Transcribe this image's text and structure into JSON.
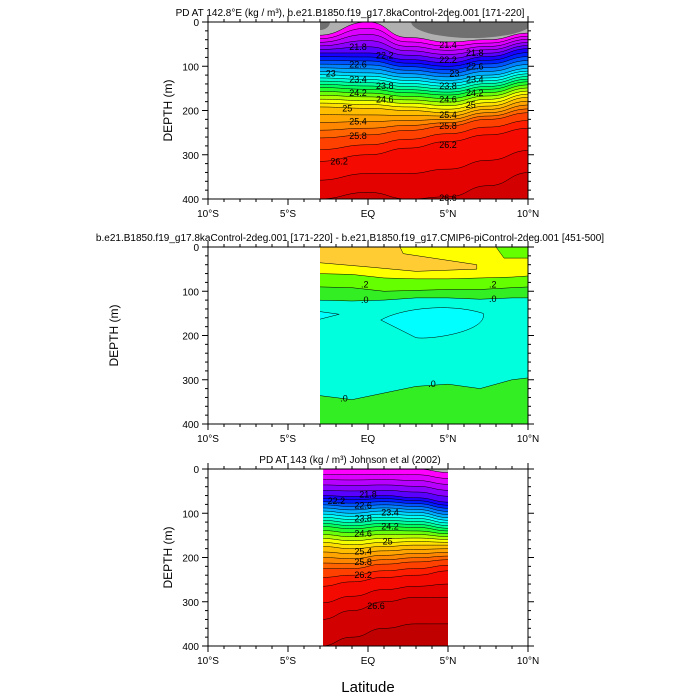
{
  "chart_data": [
    {
      "type": "contour",
      "title": "PD AT 142.8°E (kg / m³), b.e21.B1850.f19_g17.8kaControl-2deg.001 [171-220]",
      "ylabel": "DEPTH (m)",
      "xlim": [
        -10,
        10
      ],
      "ylim": [
        400,
        0
      ],
      "xticks": [
        "10°S",
        "5°S",
        "EQ",
        "5°N",
        "10°N"
      ],
      "yticks": [
        "0",
        "100",
        "200",
        "300",
        "400"
      ],
      "data_lat_range": [
        -3,
        10
      ],
      "level_step": 0.2,
      "lats": [
        -3,
        0,
        2.5,
        5,
        7.5,
        10
      ],
      "top_gray_level": 21.0,
      "anchors": [
        {
          "level": 21.0,
          "depth": [
            30,
            0,
            35,
            45,
            40,
            25
          ]
        },
        {
          "level": 22.0,
          "depth": [
            70,
            70,
            85,
            92,
            78,
            60
          ]
        },
        {
          "level": 23.0,
          "depth": [
            112,
            115,
            125,
            132,
            120,
            105
          ]
        },
        {
          "level": 24.0,
          "depth": [
            148,
            152,
            160,
            165,
            152,
            135
          ]
        },
        {
          "level": 25.0,
          "depth": [
            192,
            195,
            200,
            205,
            190,
            170
          ]
        },
        {
          "level": 25.8,
          "depth": [
            262,
            255,
            245,
            235,
            220,
            205
          ]
        },
        {
          "level": 26.2,
          "depth": [
            315,
            300,
            285,
            270,
            255,
            240
          ]
        },
        {
          "level": 26.6,
          "depth": [
            400,
            385,
            400,
            395,
            370,
            340
          ]
        }
      ],
      "contour_labels": [
        {
          "text": "21.8",
          "lat": -2.3,
          "depth": 56
        },
        {
          "text": "22.2",
          "lat": -2.3,
          "depth": 76
        },
        {
          "text": "22.6",
          "lat": -2.3,
          "depth": 96
        },
        {
          "text": "23",
          "lat": -1.3,
          "depth": 116
        },
        {
          "text": "23.4",
          "lat": -2.3,
          "depth": 130
        },
        {
          "text": "23.8",
          "lat": -2.3,
          "depth": 145
        },
        {
          "text": "24.2",
          "lat": -2.3,
          "depth": 160
        },
        {
          "text": "24.6",
          "lat": -2.3,
          "depth": 175
        },
        {
          "text": "25",
          "lat": -1.3,
          "depth": 196
        },
        {
          "text": "25.4",
          "lat": -2.3,
          "depth": 225
        },
        {
          "text": "25.8",
          "lat": -2.3,
          "depth": 258
        },
        {
          "text": "26.2",
          "lat": -1.8,
          "depth": 315
        },
        {
          "text": "21.4",
          "lat": 5,
          "depth": 52
        },
        {
          "text": "21.8",
          "lat": 5,
          "depth": 70
        },
        {
          "text": "22.2",
          "lat": 5,
          "depth": 86
        },
        {
          "text": "22.6",
          "lat": 5,
          "depth": 101
        },
        {
          "text": "23",
          "lat": 5.4,
          "depth": 116
        },
        {
          "text": "23.4",
          "lat": 5,
          "depth": 130
        },
        {
          "text": "23.8",
          "lat": 5,
          "depth": 145
        },
        {
          "text": "24.2",
          "lat": 5,
          "depth": 160
        },
        {
          "text": "24.6",
          "lat": 5,
          "depth": 175
        },
        {
          "text": "25",
          "lat": 5.4,
          "depth": 188
        },
        {
          "text": "25.4",
          "lat": 5,
          "depth": 210
        },
        {
          "text": "25.8",
          "lat": 5,
          "depth": 235
        },
        {
          "text": "26.2",
          "lat": 5,
          "depth": 278
        },
        {
          "text": "26.6",
          "lat": 5,
          "depth": 398
        }
      ]
    },
    {
      "type": "contour",
      "title": "b.e21.B1850.f19_g17.8kaControl-2deg.001 [171-220] - b.e21.B1850.f19_g17.CMIP6-piControl-2deg.001 [451-500]",
      "ylabel": "DEPTH (m)",
      "xlim": [
        -10,
        10
      ],
      "ylim": [
        400,
        0
      ],
      "xticks": [
        "10°S",
        "5°S",
        "EQ",
        "5°N",
        "10°N"
      ],
      "yticks": [
        "0",
        "100",
        "200",
        "300",
        "400"
      ],
      "data_lat_range": [
        -3,
        10
      ],
      "contour_labels": [
        {
          "text": ".2",
          "lat": -0.2,
          "depth": 85
        },
        {
          "text": ".2",
          "lat": 7.8,
          "depth": 85
        },
        {
          "text": ".0",
          "lat": -0.2,
          "depth": 120
        },
        {
          "text": ".0",
          "lat": 7.8,
          "depth": 118
        },
        {
          "text": ".0",
          "lat": 4,
          "depth": 310
        },
        {
          "text": ".0",
          "lat": -1.5,
          "depth": 342
        }
      ]
    },
    {
      "type": "contour",
      "title": "PD AT 143 (kg / m³) Johnson et al (2002)",
      "ylabel": "DEPTH (m)",
      "xlabel": "Latitude",
      "xlim": [
        -10,
        10
      ],
      "ylim": [
        400,
        0
      ],
      "xticks": [
        "10°S",
        "5°S",
        "EQ",
        "5°N",
        "10°N"
      ],
      "yticks": [
        "0",
        "100",
        "200",
        "300",
        "400"
      ],
      "data_lat_range": [
        -2.8,
        5
      ],
      "level_step": 0.2,
      "lats": [
        -2.8,
        -1,
        1,
        3,
        5
      ],
      "top_gray_level": 21.0,
      "anchors": [
        {
          "level": 21.0,
          "depth": [
            0,
            0,
            0,
            0,
            8
          ]
        },
        {
          "level": 22.0,
          "depth": [
            60,
            62,
            60,
            65,
            75
          ]
        },
        {
          "level": 23.0,
          "depth": [
            95,
            100,
            95,
            98,
            110
          ]
        },
        {
          "level": 24.0,
          "depth": [
            130,
            135,
            130,
            132,
            140
          ]
        },
        {
          "level": 25.0,
          "depth": [
            175,
            180,
            175,
            172,
            172
          ]
        },
        {
          "level": 25.8,
          "depth": [
            225,
            225,
            215,
            210,
            205
          ]
        },
        {
          "level": 26.2,
          "depth": [
            265,
            255,
            245,
            240,
            230
          ]
        },
        {
          "level": 26.6,
          "depth": [
            340,
            320,
            300,
            290,
            290
          ]
        }
      ],
      "contour_labels": [
        {
          "text": "21.8",
          "lat": 0,
          "depth": 58
        },
        {
          "text": "22.2",
          "lat": -0.3,
          "depth": 72
        },
        {
          "text": "22.6",
          "lat": -0.3,
          "depth": 82
        },
        {
          "text": "23.4",
          "lat": -0.3,
          "depth": 98
        },
        {
          "text": "23.8",
          "lat": -0.3,
          "depth": 112
        },
        {
          "text": "24.2",
          "lat": -0.3,
          "depth": 130
        },
        {
          "text": "24.6",
          "lat": -0.3,
          "depth": 146
        },
        {
          "text": "25",
          "lat": 0.2,
          "depth": 164
        },
        {
          "text": "25.4",
          "lat": -0.3,
          "depth": 186
        },
        {
          "text": "25.8",
          "lat": -0.3,
          "depth": 210
        },
        {
          "text": "26.2",
          "lat": -0.3,
          "depth": 240
        },
        {
          "text": "26.6",
          "lat": 0.5,
          "depth": 310
        }
      ]
    }
  ],
  "colors": {
    "gray_light": "#b0b0b0",
    "gray_dark": "#707070",
    "palette": [
      "#ff00ff",
      "#c000ff",
      "#7000ff",
      "#0000ff",
      "#0060ff",
      "#00b0ff",
      "#00ffff",
      "#00ffb0",
      "#00ff40",
      "#80ff00",
      "#ffff00",
      "#ffc000",
      "#ff9000",
      "#ff5000",
      "#ff1000",
      "#e00000",
      "#c00000"
    ],
    "diff": {
      "gold": "#ffcc33",
      "yellow": "#ffff00",
      "lightgreen": "#66ff00",
      "green": "#33ee22",
      "teal": "#00ffdd",
      "cyan": "#00ffff"
    }
  },
  "xlabel": "Latitude"
}
